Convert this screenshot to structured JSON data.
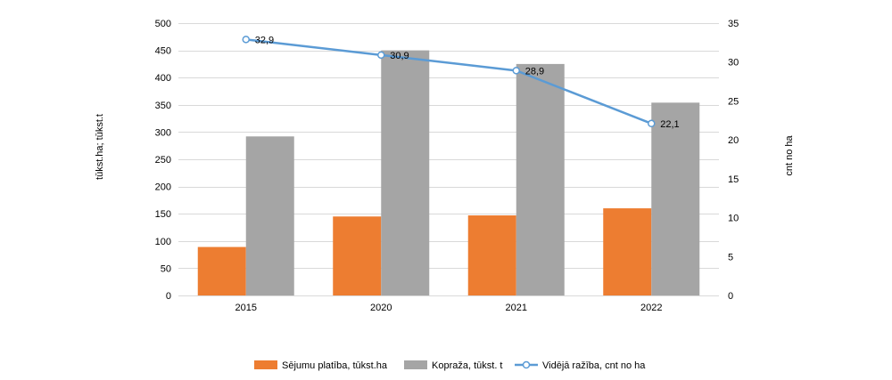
{
  "chart_data": {
    "type": "bar",
    "categories": [
      "2015",
      "2020",
      "2021",
      "2022"
    ],
    "series": [
      {
        "name": "Sējumu platība, tūkst.ha",
        "kind": "bar",
        "axis": "left",
        "color": "#ED7D31",
        "values": [
          89,
          145,
          147,
          160
        ]
      },
      {
        "name": "Kopraža, tūkst. t",
        "kind": "bar",
        "axis": "left",
        "color": "#A5A5A5",
        "values": [
          292,
          450,
          425,
          354
        ]
      },
      {
        "name": "Vidējā ražība, cnt no ha",
        "kind": "line",
        "axis": "right",
        "color": "#5B9BD5",
        "values": [
          32.9,
          30.9,
          28.9,
          22.1
        ],
        "labels": [
          "32,9",
          "30,9",
          "28,9",
          "22,1"
        ]
      }
    ],
    "ylabel": "tūkst.ha; tūkst.t",
    "y2label": "cnt no ha",
    "ylim": [
      0,
      500
    ],
    "y2lim": [
      0,
      35
    ],
    "yticks": [
      0,
      50,
      100,
      150,
      200,
      250,
      300,
      350,
      400,
      450,
      500
    ],
    "y2ticks": [
      0,
      5,
      10,
      15,
      20,
      25,
      30,
      35
    ],
    "grid": true,
    "legend_position": "bottom"
  }
}
